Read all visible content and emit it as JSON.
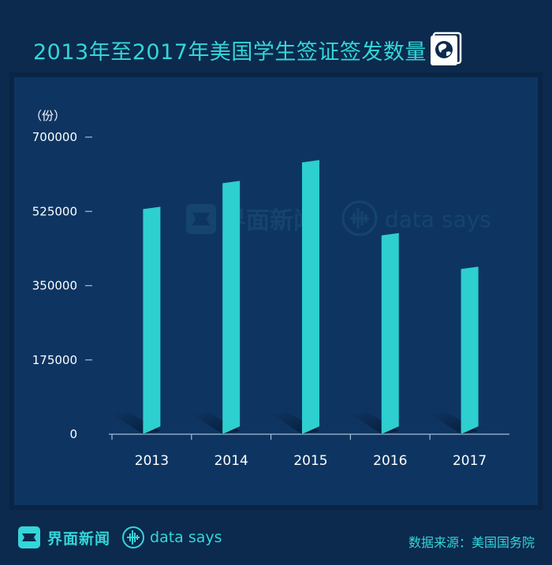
{
  "header": {
    "title": "2013年至2017年美国学生签证签发数量",
    "icon": "passport-globe-icon"
  },
  "watermark": {
    "brand_cn": "界面新闻",
    "brand_en": "data says"
  },
  "chart_data": {
    "type": "bar",
    "title": "2013年至2017年美国学生签证签发数量",
    "ylabel": "（份）",
    "xlabel": "",
    "categories": [
      "2013",
      "2014",
      "2015",
      "2016",
      "2017"
    ],
    "values": [
      534000,
      595000,
      644000,
      472000,
      393000
    ],
    "ylim": [
      0,
      700000
    ],
    "yticks": [
      0,
      175000,
      350000,
      525000,
      700000
    ],
    "ytick_labels": [
      "0",
      "175000",
      "350000",
      "525000",
      "700000"
    ],
    "bar_color": "#2ecfcf",
    "grid": false
  },
  "footer": {
    "brand_cn": "界面新闻",
    "brand_en": "data says",
    "source": "数据来源：美国国务院"
  },
  "colors": {
    "background": "#0b2a4d",
    "panel": "#0e3562",
    "accent": "#34d6d9"
  }
}
